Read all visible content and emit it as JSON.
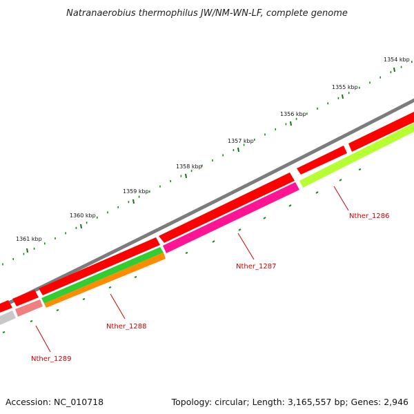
{
  "title": "Natranaerobius thermophilus JW/NM-WN-LF, complete genome",
  "footer": {
    "accession": "Accession: NC_010718",
    "summary": "Topology: circular; Length: 3,165,557 bp; Genes: 2,946"
  },
  "ruler": {
    "labels": [
      "1354 kbp",
      "1355 kbp",
      "1356 kbp",
      "1357 kbp",
      "1358 kbp",
      "1359 kbp",
      "1360 kbp",
      "1361 kbp"
    ],
    "minor_color": "#1a8a1a",
    "major_color": "#1a6e1a"
  },
  "backbone_color": "#808080",
  "genes": [
    {
      "name": "Nther_1286",
      "color": "#b5ff33",
      "strand": "reverse"
    },
    {
      "name": "Nther_1287",
      "color": "#ff1493",
      "strand": "reverse"
    },
    {
      "name": "Nther_1288",
      "color": "#ff8c00",
      "strand": "reverse"
    },
    {
      "name": "Nther_1289",
      "color": "#f08080",
      "strand": "reverse"
    }
  ],
  "colors": {
    "cds_forward": "#ff0000",
    "gene_green": "#33cc33",
    "gene_grey": "#c8c8c8",
    "label_line": "#cc0000"
  }
}
